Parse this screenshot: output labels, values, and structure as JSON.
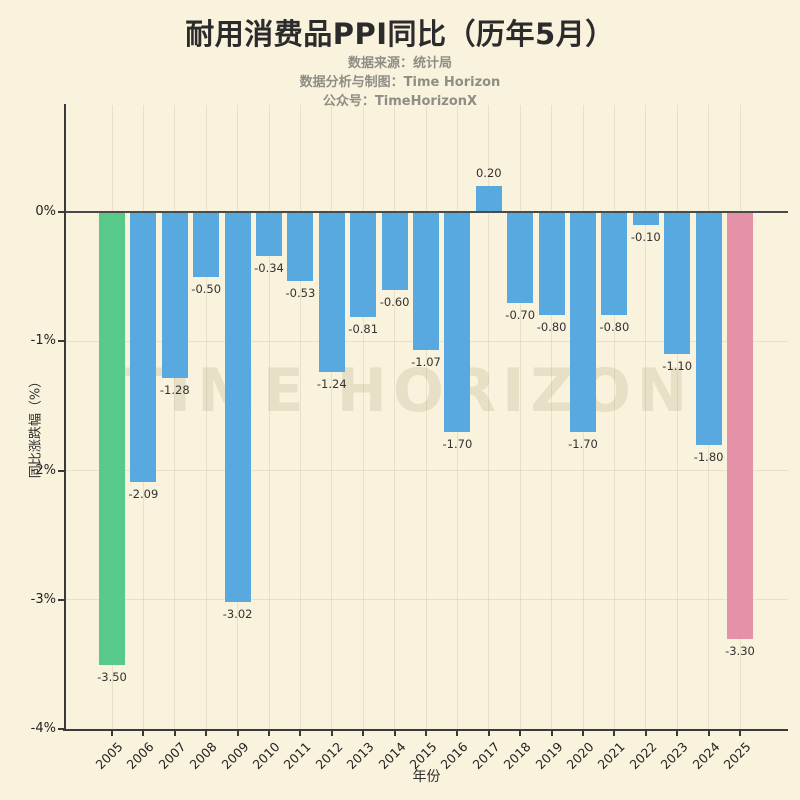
{
  "header": {
    "title": "耐用消费品PPI同比（历年5月）",
    "subtitle": [
      "数据来源：统计局",
      "数据分析与制图：Time Horizon",
      "公众号：TimeHorizonX"
    ]
  },
  "watermark": "TIME HORIZON",
  "colors": {
    "background": "#f9f2dd",
    "bar_default": "#58a9e0",
    "bar_first": "#57c989",
    "bar_last": "#e592a9",
    "axis": "#3a3a3a",
    "zero_line": "#4a4a4a",
    "subtitle_gray": "#8e8e86"
  },
  "chart_data": {
    "type": "bar",
    "title": "耐用消费品PPI同比（历年5月）",
    "xlabel": "年份",
    "ylabel": "同比涨跌幅（%）",
    "categories": [
      "2005",
      "2006",
      "2007",
      "2008",
      "2009",
      "2010",
      "2011",
      "2012",
      "2013",
      "2014",
      "2015",
      "2016",
      "2017",
      "2018",
      "2019",
      "2020",
      "2021",
      "2022",
      "2023",
      "2024",
      "2025"
    ],
    "values": [
      -3.5,
      -2.09,
      -1.28,
      -0.5,
      -3.02,
      -0.34,
      -0.53,
      -1.24,
      -0.81,
      -0.6,
      -1.07,
      -1.7,
      0.2,
      -0.7,
      -0.8,
      -1.7,
      -0.8,
      -0.1,
      -1.1,
      -1.8,
      -3.3
    ],
    "bar_colors": [
      "#57c989",
      "#58a9e0",
      "#58a9e0",
      "#58a9e0",
      "#58a9e0",
      "#58a9e0",
      "#58a9e0",
      "#58a9e0",
      "#58a9e0",
      "#58a9e0",
      "#58a9e0",
      "#58a9e0",
      "#58a9e0",
      "#58a9e0",
      "#58a9e0",
      "#58a9e0",
      "#58a9e0",
      "#58a9e0",
      "#58a9e0",
      "#58a9e0",
      "#e592a9"
    ],
    "y_ticks": [
      {
        "label": "0%",
        "value": 0
      },
      {
        "label": "-1%",
        "value": -1
      },
      {
        "label": "-2%",
        "value": -2
      },
      {
        "label": "-3%",
        "value": -3
      },
      {
        "label": "-4%",
        "value": -4
      }
    ],
    "ylim": [
      -4,
      0.83
    ],
    "grid": true,
    "legend": null,
    "value_labels_shown": true
  }
}
